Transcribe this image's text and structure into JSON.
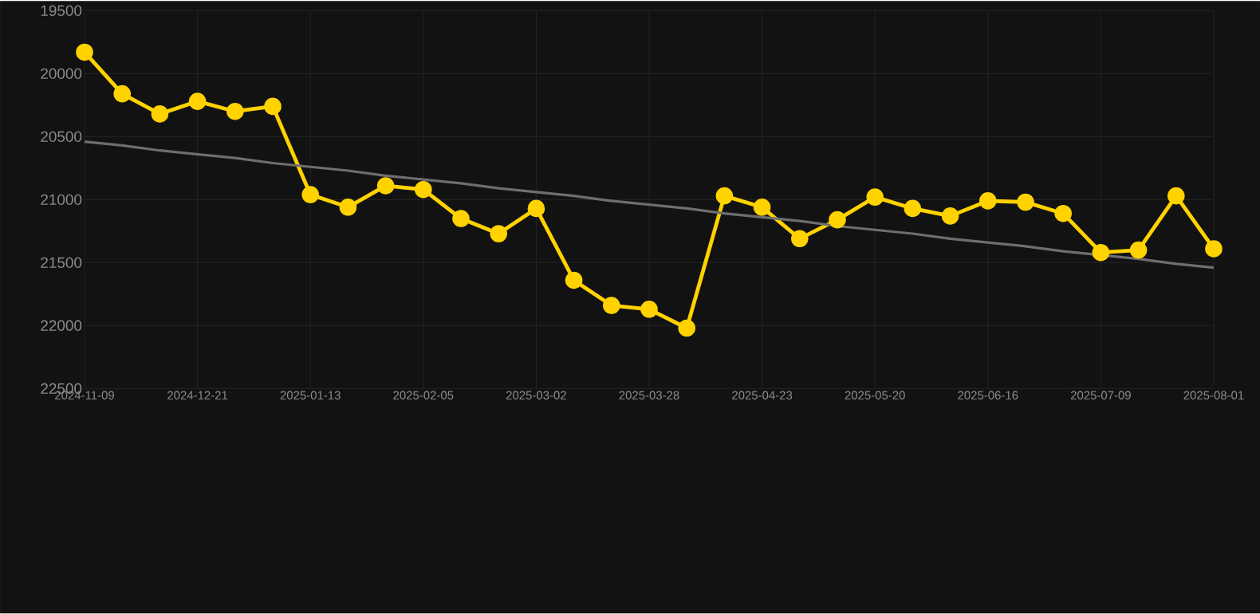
{
  "chart_data": {
    "type": "line",
    "categories": [
      "2024-11-09",
      null,
      null,
      "2024-12-21",
      null,
      null,
      "2025-01-13",
      null,
      null,
      "2025-02-05",
      null,
      null,
      "2025-03-02",
      null,
      null,
      "2025-03-28",
      null,
      null,
      "2025-04-23",
      null,
      null,
      "2025-05-20",
      null,
      null,
      "2025-06-16",
      null,
      null,
      "2025-07-09",
      null,
      null,
      "2025-08-01"
    ],
    "series": [
      {
        "color": "#ffd200",
        "marker": "circle",
        "values": [
          19830,
          20160,
          20320,
          20220,
          20300,
          20260,
          20960,
          21060,
          20890,
          20920,
          21150,
          21270,
          21070,
          21640,
          21840,
          21870,
          22020,
          20970,
          21060,
          21310,
          21160,
          20980,
          21070,
          21130,
          21010,
          21020,
          21110,
          21420,
          21400,
          20970,
          21390
        ]
      },
      {
        "type": "line",
        "color": "#6e6e6e",
        "marker": "none",
        "values": [
          20540,
          20570,
          20610,
          20640,
          20670,
          20710,
          20740,
          20770,
          20810,
          20840,
          20870,
          20910,
          20940,
          20970,
          21010,
          21040,
          21070,
          21110,
          21140,
          21170,
          21210,
          21240,
          21270,
          21310,
          21340,
          21370,
          21410,
          21440,
          21470,
          21510,
          21540
        ]
      }
    ],
    "ylim": [
      22500,
      19500
    ],
    "yticks": [
      19500,
      20000,
      20500,
      21000,
      21500,
      22000,
      22500
    ],
    "grid": true
  }
}
